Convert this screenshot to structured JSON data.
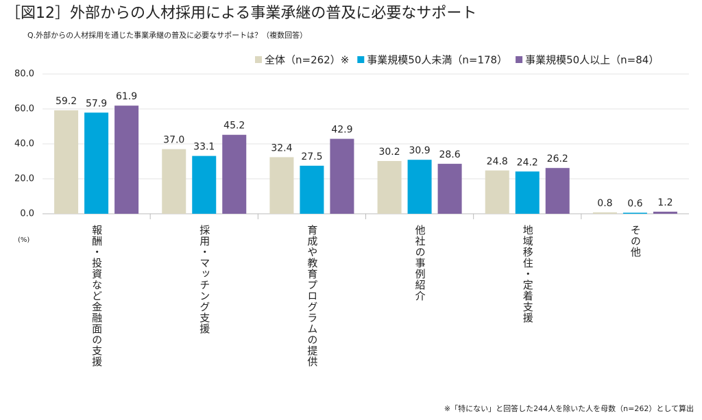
{
  "chart_data": {
    "type": "bar",
    "title": "［図12］外部からの人材採用による事業承継の普及に必要なサポート",
    "subtitle": "Q.外部からの人材採用を通じた事業承継の普及に必要なサポートは？（複数回答）",
    "unit": "(%)",
    "footnote": "※「特にない」と回答した244人を除いた人を母数（n=262）として算出",
    "categories": [
      "報酬・投資など金融面の支援",
      "採用・マッチング支援",
      "育成や教育プログラムの提供",
      "他社の事例紹介",
      "地域移住・定着支援",
      "その他"
    ],
    "series": [
      {
        "name": "全体（n=262）※",
        "color": "#dcd8c0",
        "values": [
          59.2,
          37.0,
          32.4,
          30.2,
          24.8,
          0.8
        ],
        "value_labels": [
          "59.2",
          "37.0",
          "32.4",
          "30.2",
          "24.8",
          "0.8"
        ]
      },
      {
        "name": "事業規模50人未満（n=178）",
        "color": "#00a6dc",
        "values": [
          57.9,
          33.1,
          27.5,
          30.9,
          24.2,
          0.6
        ],
        "value_labels": [
          "57.9",
          "33.1",
          "27.5",
          "30.9",
          "24.2",
          "0.6"
        ]
      },
      {
        "name": "事業規模50人以上（n=84）",
        "color": "#8064a2",
        "values": [
          61.9,
          45.2,
          42.9,
          28.6,
          26.2,
          1.2
        ],
        "value_labels": [
          "61.9",
          "45.2",
          "42.9",
          "28.6",
          "26.2",
          "1.2"
        ]
      }
    ],
    "ylim": [
      0,
      80
    ],
    "yticks": [
      {
        "value": 0,
        "label": "0.0"
      },
      {
        "value": 20,
        "label": "20.0"
      },
      {
        "value": 40,
        "label": "40.0"
      },
      {
        "value": 60,
        "label": "60.0"
      },
      {
        "value": 80,
        "label": "80.0"
      }
    ],
    "grid": true
  }
}
